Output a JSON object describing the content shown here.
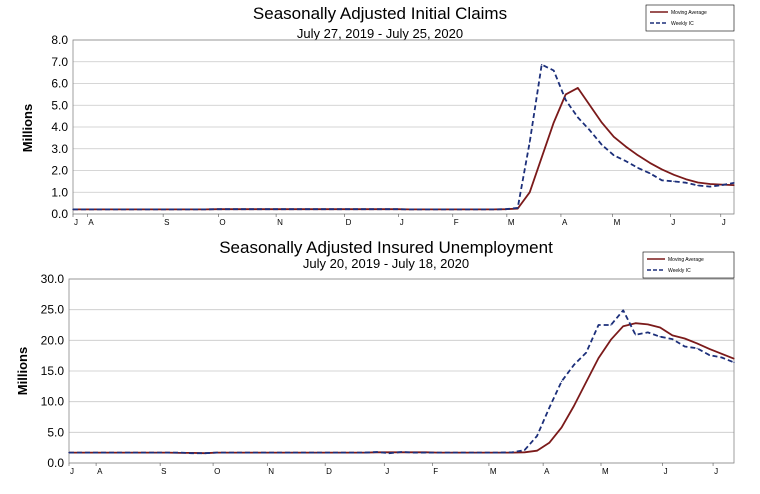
{
  "colors": {
    "moving_average": "#7b1a1a",
    "weekly": "#1c2f7a",
    "grid": "#c8c8c8"
  },
  "chart_data": [
    {
      "type": "line",
      "title": "Seasonally Adjusted Initial Claims",
      "subtitle": "July 27, 2019 - July 25, 2020",
      "ylabel": "Millions",
      "ylim": [
        0,
        8
      ],
      "yticks": [
        "0.0",
        "1.0",
        "2.0",
        "3.0",
        "4.0",
        "5.0",
        "6.0",
        "7.0",
        "8.0"
      ],
      "grid": true,
      "legend_position": "top-right",
      "xlabels": [
        "J",
        "A",
        "S",
        "O",
        "N",
        "D",
        "J",
        "F",
        "M",
        "A",
        "M",
        "J",
        "J"
      ],
      "xlabel_pos": [
        0,
        1.2,
        7.5,
        12.1,
        16.9,
        22.6,
        27.1,
        31.6,
        36.1,
        40.6,
        44.9,
        49.7,
        53.9
      ],
      "x": [
        0,
        1,
        2,
        3,
        4,
        5,
        6,
        7,
        8,
        9,
        10,
        11,
        12,
        13,
        14,
        15,
        16,
        17,
        18,
        19,
        20,
        21,
        22,
        23,
        24,
        25,
        26,
        27,
        28,
        29,
        30,
        31,
        32,
        33,
        34,
        35,
        36,
        37,
        38,
        39,
        40,
        41,
        42,
        43,
        44,
        45,
        46,
        47,
        48,
        49,
        50,
        51,
        52,
        53,
        54,
        55
      ],
      "series": [
        {
          "name": "Moving Average",
          "style": "solid",
          "values": [
            0.21,
            0.21,
            0.21,
            0.21,
            0.21,
            0.21,
            0.21,
            0.21,
            0.21,
            0.21,
            0.21,
            0.21,
            0.22,
            0.22,
            0.22,
            0.22,
            0.22,
            0.22,
            0.22,
            0.22,
            0.22,
            0.22,
            0.22,
            0.22,
            0.22,
            0.22,
            0.22,
            0.22,
            0.21,
            0.21,
            0.21,
            0.21,
            0.21,
            0.21,
            0.21,
            0.21,
            0.22,
            0.25,
            1.0,
            2.6,
            4.2,
            5.5,
            5.8,
            5.0,
            4.2,
            3.55,
            3.1,
            2.7,
            2.35,
            2.05,
            1.8,
            1.6,
            1.45,
            1.38,
            1.35,
            1.33
          ]
        },
        {
          "name": "Weekly IC",
          "style": "dashed",
          "values": [
            0.21,
            0.21,
            0.21,
            0.21,
            0.21,
            0.21,
            0.21,
            0.21,
            0.21,
            0.21,
            0.21,
            0.21,
            0.22,
            0.22,
            0.22,
            0.22,
            0.22,
            0.22,
            0.22,
            0.22,
            0.22,
            0.22,
            0.22,
            0.22,
            0.22,
            0.22,
            0.22,
            0.22,
            0.21,
            0.21,
            0.21,
            0.21,
            0.21,
            0.21,
            0.21,
            0.21,
            0.22,
            0.28,
            3.3,
            6.87,
            6.6,
            5.24,
            4.44,
            3.85,
            3.18,
            2.7,
            2.43,
            2.12,
            1.87,
            1.55,
            1.5,
            1.44,
            1.31,
            1.26,
            1.33,
            1.43
          ]
        }
      ]
    },
    {
      "type": "line",
      "title": "Seasonally Adjusted Insured Unemployment",
      "subtitle": "July 20, 2019 - July 18, 2020",
      "ylabel": "Millions",
      "ylim": [
        0,
        30
      ],
      "yticks": [
        "0.0",
        "5.0",
        "10.0",
        "15.0",
        "20.0",
        "25.0",
        "30.0"
      ],
      "grid": true,
      "legend_position": "top-right",
      "xlabels": [
        "J",
        "A",
        "S",
        "O",
        "N",
        "D",
        "J",
        "F",
        "M",
        "A",
        "M",
        "J",
        "J"
      ],
      "xlabel_pos": [
        0,
        2.2,
        7.4,
        11.7,
        16.1,
        20.8,
        25.6,
        29.5,
        34.1,
        38.5,
        43.2,
        48.2,
        52.3
      ],
      "x": [
        0,
        1,
        2,
        3,
        4,
        5,
        6,
        7,
        8,
        9,
        10,
        11,
        12,
        13,
        14,
        15,
        16,
        17,
        18,
        19,
        20,
        21,
        22,
        23,
        24,
        25,
        26,
        27,
        28,
        29,
        30,
        31,
        32,
        33,
        34,
        35,
        36,
        37,
        38,
        39,
        40,
        41,
        42,
        43,
        44,
        45,
        46,
        47,
        48,
        49,
        50,
        51,
        52,
        53,
        54
      ],
      "series": [
        {
          "name": "Moving Average",
          "style": "solid",
          "values": [
            1.7,
            1.7,
            1.7,
            1.7,
            1.7,
            1.7,
            1.7,
            1.7,
            1.7,
            1.65,
            1.65,
            1.6,
            1.7,
            1.7,
            1.7,
            1.7,
            1.7,
            1.7,
            1.7,
            1.7,
            1.7,
            1.7,
            1.7,
            1.7,
            1.7,
            1.75,
            1.75,
            1.75,
            1.75,
            1.75,
            1.7,
            1.7,
            1.7,
            1.7,
            1.7,
            1.7,
            1.7,
            1.75,
            2.0,
            3.3,
            5.8,
            9.3,
            13.2,
            17.1,
            20.1,
            22.3,
            22.8,
            22.6,
            22.1,
            20.8,
            20.3,
            19.5,
            18.6,
            17.8,
            17.0
          ]
        },
        {
          "name": "Weekly IC",
          "style": "dashed",
          "values": [
            1.7,
            1.7,
            1.7,
            1.7,
            1.7,
            1.7,
            1.7,
            1.7,
            1.7,
            1.7,
            1.6,
            1.6,
            1.7,
            1.7,
            1.7,
            1.7,
            1.7,
            1.7,
            1.7,
            1.7,
            1.7,
            1.7,
            1.7,
            1.7,
            1.7,
            1.8,
            1.6,
            1.8,
            1.7,
            1.7,
            1.7,
            1.7,
            1.7,
            1.7,
            1.7,
            1.7,
            1.75,
            2.1,
            4.4,
            9.0,
            13.3,
            16.0,
            18.0,
            22.5,
            22.5,
            24.9,
            20.9,
            21.3,
            20.6,
            20.2,
            19.0,
            18.7,
            17.6,
            17.2,
            16.4
          ]
        }
      ]
    }
  ]
}
